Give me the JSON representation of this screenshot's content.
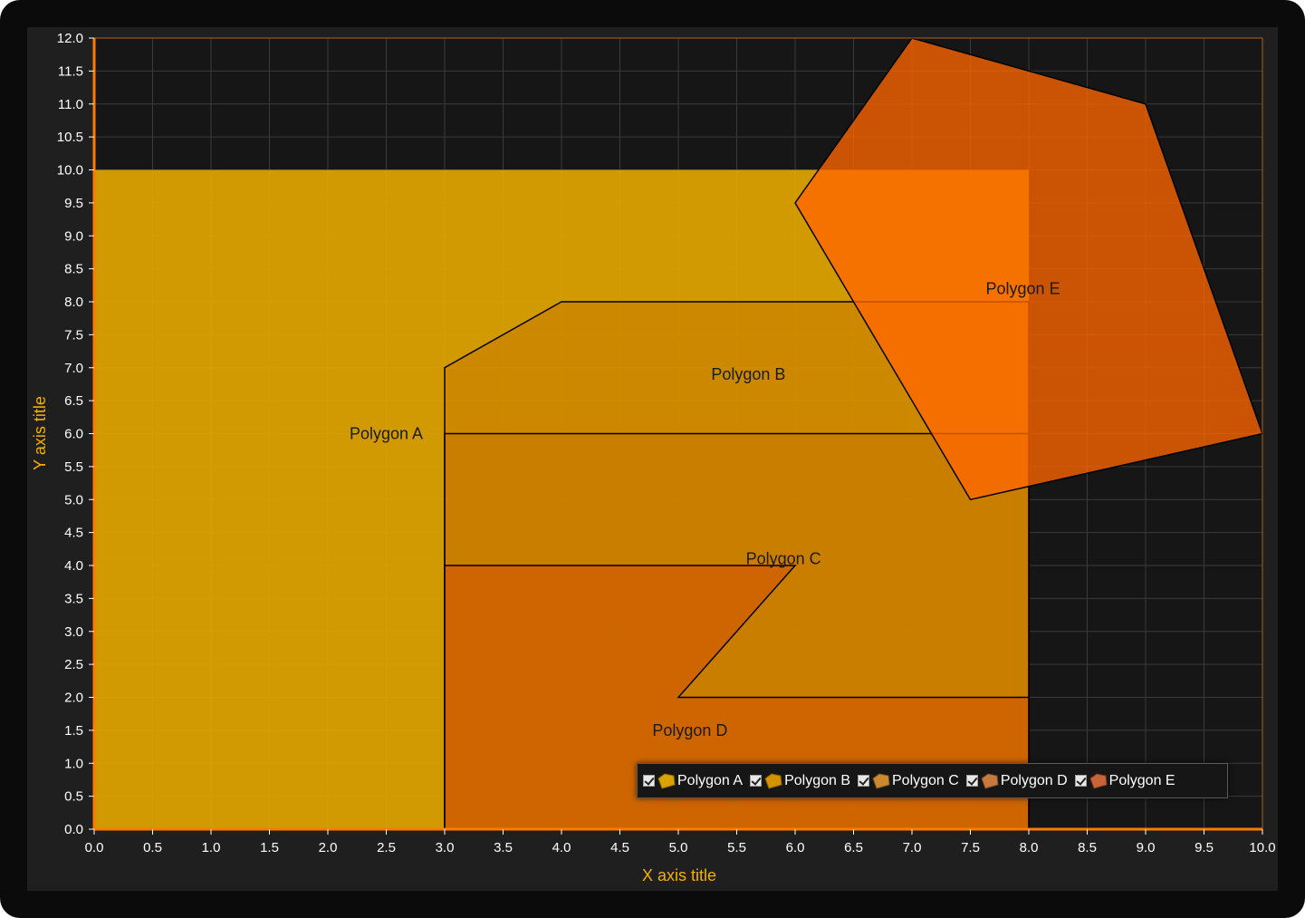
{
  "chart_data": {
    "type": "area",
    "xlabel": "X axis title",
    "ylabel": "Y axis title",
    "xlim": [
      0,
      10
    ],
    "ylim": [
      0,
      12
    ],
    "x_ticks": [
      "0.0",
      "0.5",
      "1.0",
      "1.5",
      "2.0",
      "2.5",
      "3.0",
      "3.5",
      "4.0",
      "4.5",
      "5.0",
      "5.5",
      "6.0",
      "6.5",
      "7.0",
      "7.5",
      "8.0",
      "8.5",
      "9.0",
      "9.5",
      "10.0"
    ],
    "y_ticks": [
      "0.0",
      "0.5",
      "1.0",
      "1.5",
      "2.0",
      "2.5",
      "3.0",
      "3.5",
      "4.0",
      "4.5",
      "5.0",
      "5.5",
      "6.0",
      "6.5",
      "7.0",
      "7.5",
      "8.0",
      "8.5",
      "9.0",
      "9.5",
      "10.0",
      "10.5",
      "11.0",
      "11.5",
      "12.0"
    ],
    "grid": true,
    "legend_position": "bottom-right",
    "series": [
      {
        "name": "Polygon A",
        "color": "#e0a800",
        "points": [
          [
            0,
            0
          ],
          [
            0,
            10
          ],
          [
            8,
            10
          ],
          [
            8,
            0
          ]
        ]
      },
      {
        "name": "Polygon B",
        "color": "#c97a00",
        "points": [
          [
            3,
            0
          ],
          [
            3,
            7
          ],
          [
            4,
            8
          ],
          [
            8,
            8
          ],
          [
            8,
            0
          ]
        ]
      },
      {
        "name": "Polygon C",
        "color": "#c97a00",
        "points": [
          [
            3,
            0
          ],
          [
            3,
            6
          ],
          [
            8,
            6
          ],
          [
            8,
            0
          ]
        ]
      },
      {
        "name": "Polygon D",
        "color": "#d05a00",
        "points": [
          [
            3,
            0
          ],
          [
            3,
            4
          ],
          [
            6,
            4
          ],
          [
            5,
            2
          ],
          [
            8,
            2
          ],
          [
            8,
            0
          ]
        ]
      },
      {
        "name": "Polygon E",
        "color": "#ff6a00",
        "points": [
          [
            7,
            12
          ],
          [
            9,
            11
          ],
          [
            10,
            6
          ],
          [
            7.5,
            5
          ],
          [
            6,
            9.5
          ]
        ]
      }
    ],
    "annotations": [
      {
        "text": "Polygon A",
        "x": 2.5,
        "y": 6.0
      },
      {
        "text": "Polygon B",
        "x": 5.6,
        "y": 6.9
      },
      {
        "text": "Polygon C",
        "x": 5.9,
        "y": 4.1
      },
      {
        "text": "Polygon D",
        "x": 5.1,
        "y": 1.5
      },
      {
        "text": "Polygon E",
        "x": 7.95,
        "y": 8.2
      }
    ]
  },
  "legend": {
    "items": [
      {
        "label": "Polygon A"
      },
      {
        "label": "Polygon B"
      },
      {
        "label": "Polygon C"
      },
      {
        "label": "Polygon D"
      },
      {
        "label": "Polygon E"
      }
    ]
  }
}
